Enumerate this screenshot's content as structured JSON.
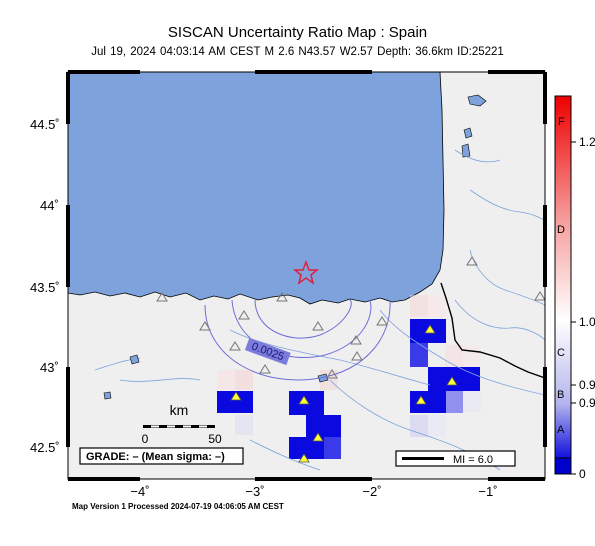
{
  "header": {
    "title": "SISCAN Uncertainty Ratio Map : Spain",
    "subtitle": "Jul 19, 2024 04:03:14 AM CEST   M 2.6   N43.57 W2.57   Depth: 36.6km   ID:25221"
  },
  "map": {
    "lat_ticks": [
      "44.5˚",
      "44˚",
      "43.5˚",
      "43˚",
      "42.5˚"
    ],
    "lon_ticks": [
      "−4˚",
      "−3˚",
      "−2˚",
      "−1˚"
    ],
    "contour_label": "0.0025",
    "scalebar": {
      "unit": "km",
      "start": "0",
      "end": "50"
    },
    "grade_label": "GRADE: – (Mean sigma: –)",
    "mi_legend": "MI = 6.0",
    "epicenter": {
      "lat": 43.57,
      "lon": -2.57
    }
  },
  "colorbar": {
    "grades": [
      "F",
      "D",
      "C",
      "B",
      "A"
    ],
    "values": [
      "1.2",
      "1.0",
      "0.9",
      "0.9",
      "0"
    ],
    "colors": {
      "top": "#ee0000",
      "mid": "#ffffff",
      "bottom": "#0000cc"
    }
  },
  "footer": {
    "text": "Map Version 1 Processed 2024-07-19 04:06:05 AM CEST"
  }
}
